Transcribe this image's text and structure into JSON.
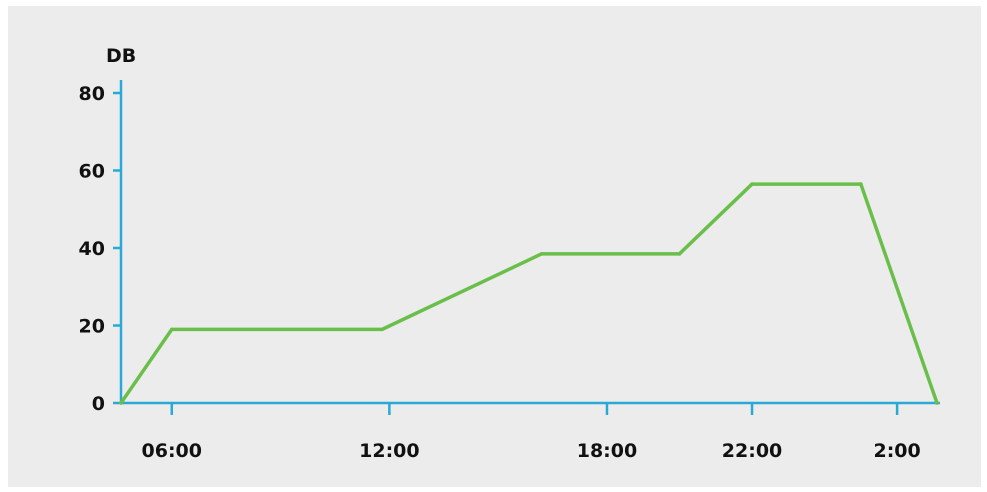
{
  "chart_data": {
    "type": "line",
    "title": "",
    "ylabel": "DB",
    "xlabel": "",
    "ylim": [
      0,
      80
    ],
    "y_ticks": [
      0,
      20,
      40,
      60,
      80
    ],
    "y_tick_labels": [
      "0",
      "20",
      "40",
      "60",
      "80"
    ],
    "x_ticks": [
      6,
      12,
      18,
      22,
      26
    ],
    "x_tick_labels": [
      "06:00",
      "12:00",
      "18:00",
      "22:00",
      "2:00"
    ],
    "xlim": [
      4.6,
      27.1
    ],
    "grid": false,
    "legend": "none",
    "series": [
      {
        "x": [
          4.6,
          6,
          11.8,
          16.2,
          20,
          22,
          25,
          27.1
        ],
        "y": [
          0,
          19,
          19,
          38.5,
          38.5,
          56.5,
          56.5,
          0
        ]
      }
    ],
    "colors": {
      "line": "#6abf4b",
      "axis": "#29a9d6",
      "background": "#ececec"
    }
  }
}
